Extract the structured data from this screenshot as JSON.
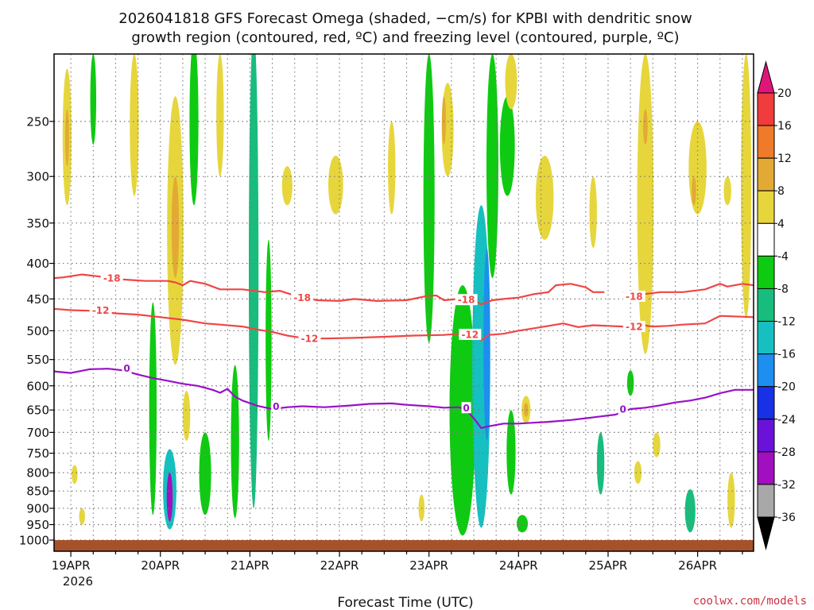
{
  "colors": {
    "red_contour": "#f04545",
    "purple_contour": "#9a10c8",
    "ground": "#a5522b",
    "grid": "#777777",
    "credit": "#cc3344"
  },
  "chart_data": {
    "type": "heatmap",
    "title_line1": "2026041818 GFS Forecast Omega (shaded, −cm/s) for KPBI with dendritic snow",
    "title_line2": "growth region (contoured, red, ºC) and freezing level (contoured, purple, ºC)",
    "xlabel": "Forecast Time (UTC)",
    "credit": "coolwx.com/models",
    "year_label": "2026",
    "x_range_hours": [
      -4.5,
      183
    ],
    "x_ticks": [
      {
        "hour": 0,
        "label": "19APR"
      },
      {
        "hour": 24,
        "label": "20APR"
      },
      {
        "hour": 48,
        "label": "21APR"
      },
      {
        "hour": 72,
        "label": "22APR"
      },
      {
        "hour": 96,
        "label": "23APR"
      },
      {
        "hour": 120,
        "label": "24APR"
      },
      {
        "hour": 144,
        "label": "25APR"
      },
      {
        "hour": 168,
        "label": "26APR"
      }
    ],
    "y_range_hpa": [
      200,
      1000
    ],
    "y_ticks": [
      250,
      300,
      350,
      400,
      450,
      500,
      550,
      600,
      650,
      700,
      750,
      800,
      850,
      900,
      950,
      1000
    ],
    "colorbar": {
      "labels": [
        "20",
        "16",
        "12",
        "8",
        "4",
        "-4",
        "-8",
        "-12",
        "-16",
        "-20",
        "-24",
        "-28",
        "-32",
        "-36"
      ],
      "bins": [
        {
          "range": "16 to 20",
          "color": "#f03c3c"
        },
        {
          "range": "12 to 16",
          "color": "#ee7a2a"
        },
        {
          "range": "8 to 12",
          "color": "#e2aa35"
        },
        {
          "range": "4 to 8",
          "color": "#e6d63c"
        },
        {
          "range": "-4 to 4",
          "color": "#ffffff"
        },
        {
          "range": "-8 to -4",
          "color": "#0ecb11"
        },
        {
          "range": "-12 to -8",
          "color": "#18bd7e"
        },
        {
          "range": "-16 to -12",
          "color": "#16c0c0"
        },
        {
          "range": "-20 to -16",
          "color": "#1c8ff0"
        },
        {
          "range": "-24 to -20",
          "color": "#1830e6"
        },
        {
          "range": "-28 to -24",
          "color": "#6a12d8"
        },
        {
          "range": "-32 to -28",
          "color": "#a010c0"
        },
        {
          "range": "-36 to -32",
          "color": "#a8a8a8"
        }
      ],
      "upper_arrow_color": "#e0157a",
      "lower_arrow_color": "#000000"
    },
    "contours": [
      {
        "name": "dendritic-top",
        "value_label": "-18",
        "color": "#f04545",
        "points": [
          [
            -4.5,
            420
          ],
          [
            -2,
            419
          ],
          [
            3,
            415
          ],
          [
            8,
            418
          ],
          [
            14,
            422
          ],
          [
            20,
            424
          ],
          [
            26,
            424
          ],
          [
            28,
            426
          ],
          [
            30,
            430
          ],
          [
            32,
            424
          ],
          [
            36,
            428
          ],
          [
            40,
            436
          ],
          [
            46,
            436
          ],
          [
            52,
            440
          ],
          [
            56,
            438
          ],
          [
            60,
            445
          ],
          [
            66,
            452
          ],
          [
            72,
            453
          ],
          [
            76,
            450
          ],
          [
            82,
            453
          ],
          [
            90,
            452
          ],
          [
            96,
            445
          ],
          [
            98,
            445
          ],
          [
            100,
            452
          ],
          [
            104,
            450
          ],
          [
            108,
            452
          ],
          [
            110,
            458
          ],
          [
            113,
            452
          ],
          [
            116,
            450
          ],
          [
            120,
            448
          ],
          [
            124,
            443
          ],
          [
            128,
            440
          ],
          [
            130,
            430
          ],
          [
            134,
            428
          ],
          [
            138,
            433
          ],
          [
            140,
            440
          ],
          [
            143,
            440
          ]
        ],
        "labels": [
          [
            11,
            420
          ],
          [
            62,
            448
          ],
          [
            106,
            451
          ]
        ]
      },
      {
        "name": "dendritic-top-east",
        "value_label": "",
        "color": "#f04545",
        "points": [
          [
            148,
            440
          ],
          [
            152,
            444
          ],
          [
            158,
            440
          ],
          [
            164,
            440
          ],
          [
            170,
            436
          ],
          [
            174,
            428
          ],
          [
            176,
            432
          ],
          [
            180,
            428
          ],
          [
            183,
            430
          ]
        ],
        "labels": [
          [
            151,
            446
          ]
        ]
      },
      {
        "name": "dendritic-bottom",
        "value_label": "-12",
        "color": "#f04545",
        "points": [
          [
            -4.5,
            465
          ],
          [
            0,
            467
          ],
          [
            6,
            468
          ],
          [
            12,
            472
          ],
          [
            18,
            474
          ],
          [
            24,
            478
          ],
          [
            30,
            482
          ],
          [
            36,
            488
          ],
          [
            40,
            490
          ],
          [
            46,
            493
          ],
          [
            50,
            498
          ],
          [
            54,
            502
          ],
          [
            58,
            508
          ],
          [
            62,
            512
          ],
          [
            68,
            513
          ],
          [
            76,
            512
          ],
          [
            84,
            510
          ],
          [
            92,
            508
          ],
          [
            100,
            507
          ],
          [
            104,
            505
          ],
          [
            106,
            508
          ],
          [
            108,
            506
          ],
          [
            110,
            516
          ],
          [
            112,
            507
          ],
          [
            116,
            505
          ],
          [
            120,
            500
          ],
          [
            124,
            496
          ],
          [
            128,
            492
          ],
          [
            132,
            488
          ],
          [
            136,
            494
          ],
          [
            140,
            491
          ],
          [
            144,
            492
          ],
          [
            148,
            493
          ],
          [
            152,
            490
          ],
          [
            156,
            493
          ],
          [
            160,
            492
          ],
          [
            164,
            490
          ],
          [
            170,
            488
          ],
          [
            174,
            476
          ],
          [
            183,
            478
          ]
        ],
        "labels": [
          [
            8,
            467
          ],
          [
            64,
            513
          ],
          [
            107,
            506
          ],
          [
            151,
            493
          ]
        ]
      },
      {
        "name": "freezing-level",
        "value_label": "0",
        "color": "#9a10c8",
        "points": [
          [
            -4.5,
            572
          ],
          [
            0,
            575
          ],
          [
            5,
            568
          ],
          [
            10,
            567
          ],
          [
            14,
            570
          ],
          [
            18,
            578
          ],
          [
            22,
            585
          ],
          [
            26,
            590
          ],
          [
            30,
            596
          ],
          [
            34,
            600
          ],
          [
            38,
            608
          ],
          [
            40,
            614
          ],
          [
            42,
            606
          ],
          [
            44,
            622
          ],
          [
            46,
            630
          ],
          [
            50,
            641
          ],
          [
            54,
            648
          ],
          [
            58,
            644
          ],
          [
            62,
            642
          ],
          [
            68,
            644
          ],
          [
            74,
            641
          ],
          [
            80,
            637
          ],
          [
            86,
            636
          ],
          [
            90,
            639
          ],
          [
            96,
            642
          ],
          [
            100,
            645
          ],
          [
            104,
            644
          ],
          [
            106,
            650
          ],
          [
            108,
            668
          ],
          [
            110,
            690
          ],
          [
            112,
            686
          ],
          [
            116,
            680
          ],
          [
            120,
            680
          ],
          [
            124,
            678
          ],
          [
            128,
            676
          ],
          [
            134,
            672
          ],
          [
            138,
            668
          ],
          [
            142,
            664
          ],
          [
            146,
            660
          ],
          [
            150,
            648
          ],
          [
            154,
            645
          ],
          [
            158,
            640
          ],
          [
            162,
            634
          ],
          [
            166,
            630
          ],
          [
            170,
            624
          ],
          [
            174,
            615
          ],
          [
            178,
            608
          ],
          [
            183,
            608
          ]
        ],
        "labels": [
          [
            15,
            566
          ],
          [
            55,
            642
          ],
          [
            106,
            645
          ],
          [
            148,
            648
          ]
        ]
      }
    ],
    "shaded_blobs": [
      {
        "name": "omega-blob",
        "value": -14,
        "hour": 26.5,
        "p_top": 740,
        "p_bottom": 965,
        "halfwidth_h": 1.8
      },
      {
        "name": "omega-blob",
        "value": -30,
        "hour": 26.5,
        "p_top": 800,
        "p_bottom": 940,
        "halfwidth_h": 0.8
      },
      {
        "name": "omega-blob",
        "value": -6,
        "hour": 22,
        "p_top": 455,
        "p_bottom": 920,
        "halfwidth_h": 1.0
      },
      {
        "name": "omega-blob",
        "value": -6,
        "hour": 36,
        "p_top": 700,
        "p_bottom": 920,
        "halfwidth_h": 1.6
      },
      {
        "name": "omega-blob",
        "value": -6,
        "hour": 44,
        "p_top": 560,
        "p_bottom": 930,
        "halfwidth_h": 1.1
      },
      {
        "name": "omega-blob",
        "value": -10,
        "hour": 49,
        "p_top": 185,
        "p_bottom": 900,
        "halfwidth_h": 1.3
      },
      {
        "name": "omega-blob",
        "value": -6,
        "hour": 53,
        "p_top": 370,
        "p_bottom": 720,
        "halfwidth_h": 0.8
      },
      {
        "name": "omega-blob",
        "value": -6,
        "hour": 33,
        "p_top": 190,
        "p_bottom": 330,
        "halfwidth_h": 1.2
      },
      {
        "name": "omega-blob",
        "value": -6,
        "hour": 6,
        "p_top": 200,
        "p_bottom": 270,
        "halfwidth_h": 0.8
      },
      {
        "name": "omega-blob",
        "value": -6,
        "hour": 96,
        "p_top": 200,
        "p_bottom": 520,
        "halfwidth_h": 1.5
      },
      {
        "name": "omega-blob",
        "value": -6,
        "hour": 105,
        "p_top": 430,
        "p_bottom": 985,
        "halfwidth_h": 3.5
      },
      {
        "name": "omega-blob",
        "value": -12,
        "hour": 110,
        "p_top": 330,
        "p_bottom": 960,
        "halfwidth_h": 2.4
      },
      {
        "name": "omega-blob",
        "value": -18,
        "hour": 111.5,
        "p_top": 380,
        "p_bottom": 720,
        "halfwidth_h": 0.9
      },
      {
        "name": "omega-blob",
        "value": -6,
        "hour": 113,
        "p_top": 200,
        "p_bottom": 420,
        "halfwidth_h": 1.6
      },
      {
        "name": "omega-blob",
        "value": -6,
        "hour": 118,
        "p_top": 650,
        "p_bottom": 860,
        "halfwidth_h": 1.2
      },
      {
        "name": "omega-blob",
        "value": -6,
        "hour": 121,
        "p_top": 920,
        "p_bottom": 975,
        "halfwidth_h": 1.5
      },
      {
        "name": "omega-blob",
        "value": -10,
        "hour": 142,
        "p_top": 700,
        "p_bottom": 860,
        "halfwidth_h": 1.0
      },
      {
        "name": "omega-blob",
        "value": -8,
        "hour": 166,
        "p_top": 845,
        "p_bottom": 975,
        "halfwidth_h": 1.4
      },
      {
        "name": "omega-blob",
        "value": -6,
        "hour": 150,
        "p_top": 570,
        "p_bottom": 620,
        "halfwidth_h": 0.9
      },
      {
        "name": "omega-blob",
        "value": -6,
        "hour": 117,
        "p_top": 230,
        "p_bottom": 320,
        "halfwidth_h": 2.0
      },
      {
        "name": "omega-blob",
        "value": 6,
        "hour": -1,
        "p_top": 210,
        "p_bottom": 330,
        "halfwidth_h": 1.2
      },
      {
        "name": "omega-blob",
        "value": 9,
        "hour": -1,
        "p_top": 240,
        "p_bottom": 290,
        "halfwidth_h": 0.5
      },
      {
        "name": "omega-blob",
        "value": 6,
        "hour": 1,
        "p_top": 780,
        "p_bottom": 830,
        "halfwidth_h": 0.8
      },
      {
        "name": "omega-blob",
        "value": 6,
        "hour": 3,
        "p_top": 900,
        "p_bottom": 950,
        "halfwidth_h": 0.8
      },
      {
        "name": "omega-blob",
        "value": 6,
        "hour": 17,
        "p_top": 200,
        "p_bottom": 320,
        "halfwidth_h": 1.2
      },
      {
        "name": "omega-blob",
        "value": 6,
        "hour": 28,
        "p_top": 230,
        "p_bottom": 560,
        "halfwidth_h": 2.2
      },
      {
        "name": "omega-blob",
        "value": 10,
        "hour": 28,
        "p_top": 300,
        "p_bottom": 420,
        "halfwidth_h": 1.0
      },
      {
        "name": "omega-blob",
        "value": 6,
        "hour": 31,
        "p_top": 610,
        "p_bottom": 720,
        "halfwidth_h": 1.0
      },
      {
        "name": "omega-blob",
        "value": 6,
        "hour": 40,
        "p_top": 200,
        "p_bottom": 300,
        "halfwidth_h": 1.0
      },
      {
        "name": "omega-blob",
        "value": 6,
        "hour": 58,
        "p_top": 290,
        "p_bottom": 330,
        "halfwidth_h": 1.4
      },
      {
        "name": "omega-blob",
        "value": 6,
        "hour": 71,
        "p_top": 280,
        "p_bottom": 340,
        "halfwidth_h": 2.0
      },
      {
        "name": "omega-blob",
        "value": 6,
        "hour": 86,
        "p_top": 250,
        "p_bottom": 340,
        "halfwidth_h": 1.0
      },
      {
        "name": "omega-blob",
        "value": 6,
        "hour": 101,
        "p_top": 220,
        "p_bottom": 300,
        "halfwidth_h": 1.6
      },
      {
        "name": "omega-blob",
        "value": 10,
        "hour": 100,
        "p_top": 230,
        "p_bottom": 270,
        "halfwidth_h": 0.5
      },
      {
        "name": "omega-blob",
        "value": 6,
        "hour": 118,
        "p_top": 200,
        "p_bottom": 240,
        "halfwidth_h": 1.6
      },
      {
        "name": "omega-blob",
        "value": 6,
        "hour": 127,
        "p_top": 280,
        "p_bottom": 370,
        "halfwidth_h": 2.4
      },
      {
        "name": "omega-blob",
        "value": 6,
        "hour": 140,
        "p_top": 300,
        "p_bottom": 380,
        "halfwidth_h": 1.0
      },
      {
        "name": "omega-blob",
        "value": 6,
        "hour": 154,
        "p_top": 200,
        "p_bottom": 540,
        "halfwidth_h": 2.2
      },
      {
        "name": "omega-blob",
        "value": 10,
        "hour": 154,
        "p_top": 240,
        "p_bottom": 270,
        "halfwidth_h": 0.6
      },
      {
        "name": "omega-blob",
        "value": 6,
        "hour": 168,
        "p_top": 250,
        "p_bottom": 340,
        "halfwidth_h": 2.4
      },
      {
        "name": "omega-blob",
        "value": 10,
        "hour": 167,
        "p_top": 300,
        "p_bottom": 330,
        "halfwidth_h": 0.6
      },
      {
        "name": "omega-blob",
        "value": 6,
        "hour": 176,
        "p_top": 300,
        "p_bottom": 330,
        "halfwidth_h": 1.0
      },
      {
        "name": "omega-blob",
        "value": 6,
        "hour": 181,
        "p_top": 200,
        "p_bottom": 480,
        "halfwidth_h": 1.4
      },
      {
        "name": "omega-blob",
        "value": 6,
        "hour": 122,
        "p_top": 620,
        "p_bottom": 680,
        "halfwidth_h": 1.2
      },
      {
        "name": "omega-blob",
        "value": 10,
        "hour": 122,
        "p_top": 635,
        "p_bottom": 665,
        "halfwidth_h": 0.6
      },
      {
        "name": "omega-blob",
        "value": 6,
        "hour": 152,
        "p_top": 770,
        "p_bottom": 830,
        "halfwidth_h": 1.0
      },
      {
        "name": "omega-blob",
        "value": 6,
        "hour": 157,
        "p_top": 700,
        "p_bottom": 760,
        "halfwidth_h": 1.0
      },
      {
        "name": "omega-blob",
        "value": 6,
        "hour": 177,
        "p_top": 800,
        "p_bottom": 960,
        "halfwidth_h": 1.0
      },
      {
        "name": "omega-blob",
        "value": 6,
        "hour": 94,
        "p_top": 860,
        "p_bottom": 940,
        "halfwidth_h": 0.8
      }
    ]
  }
}
